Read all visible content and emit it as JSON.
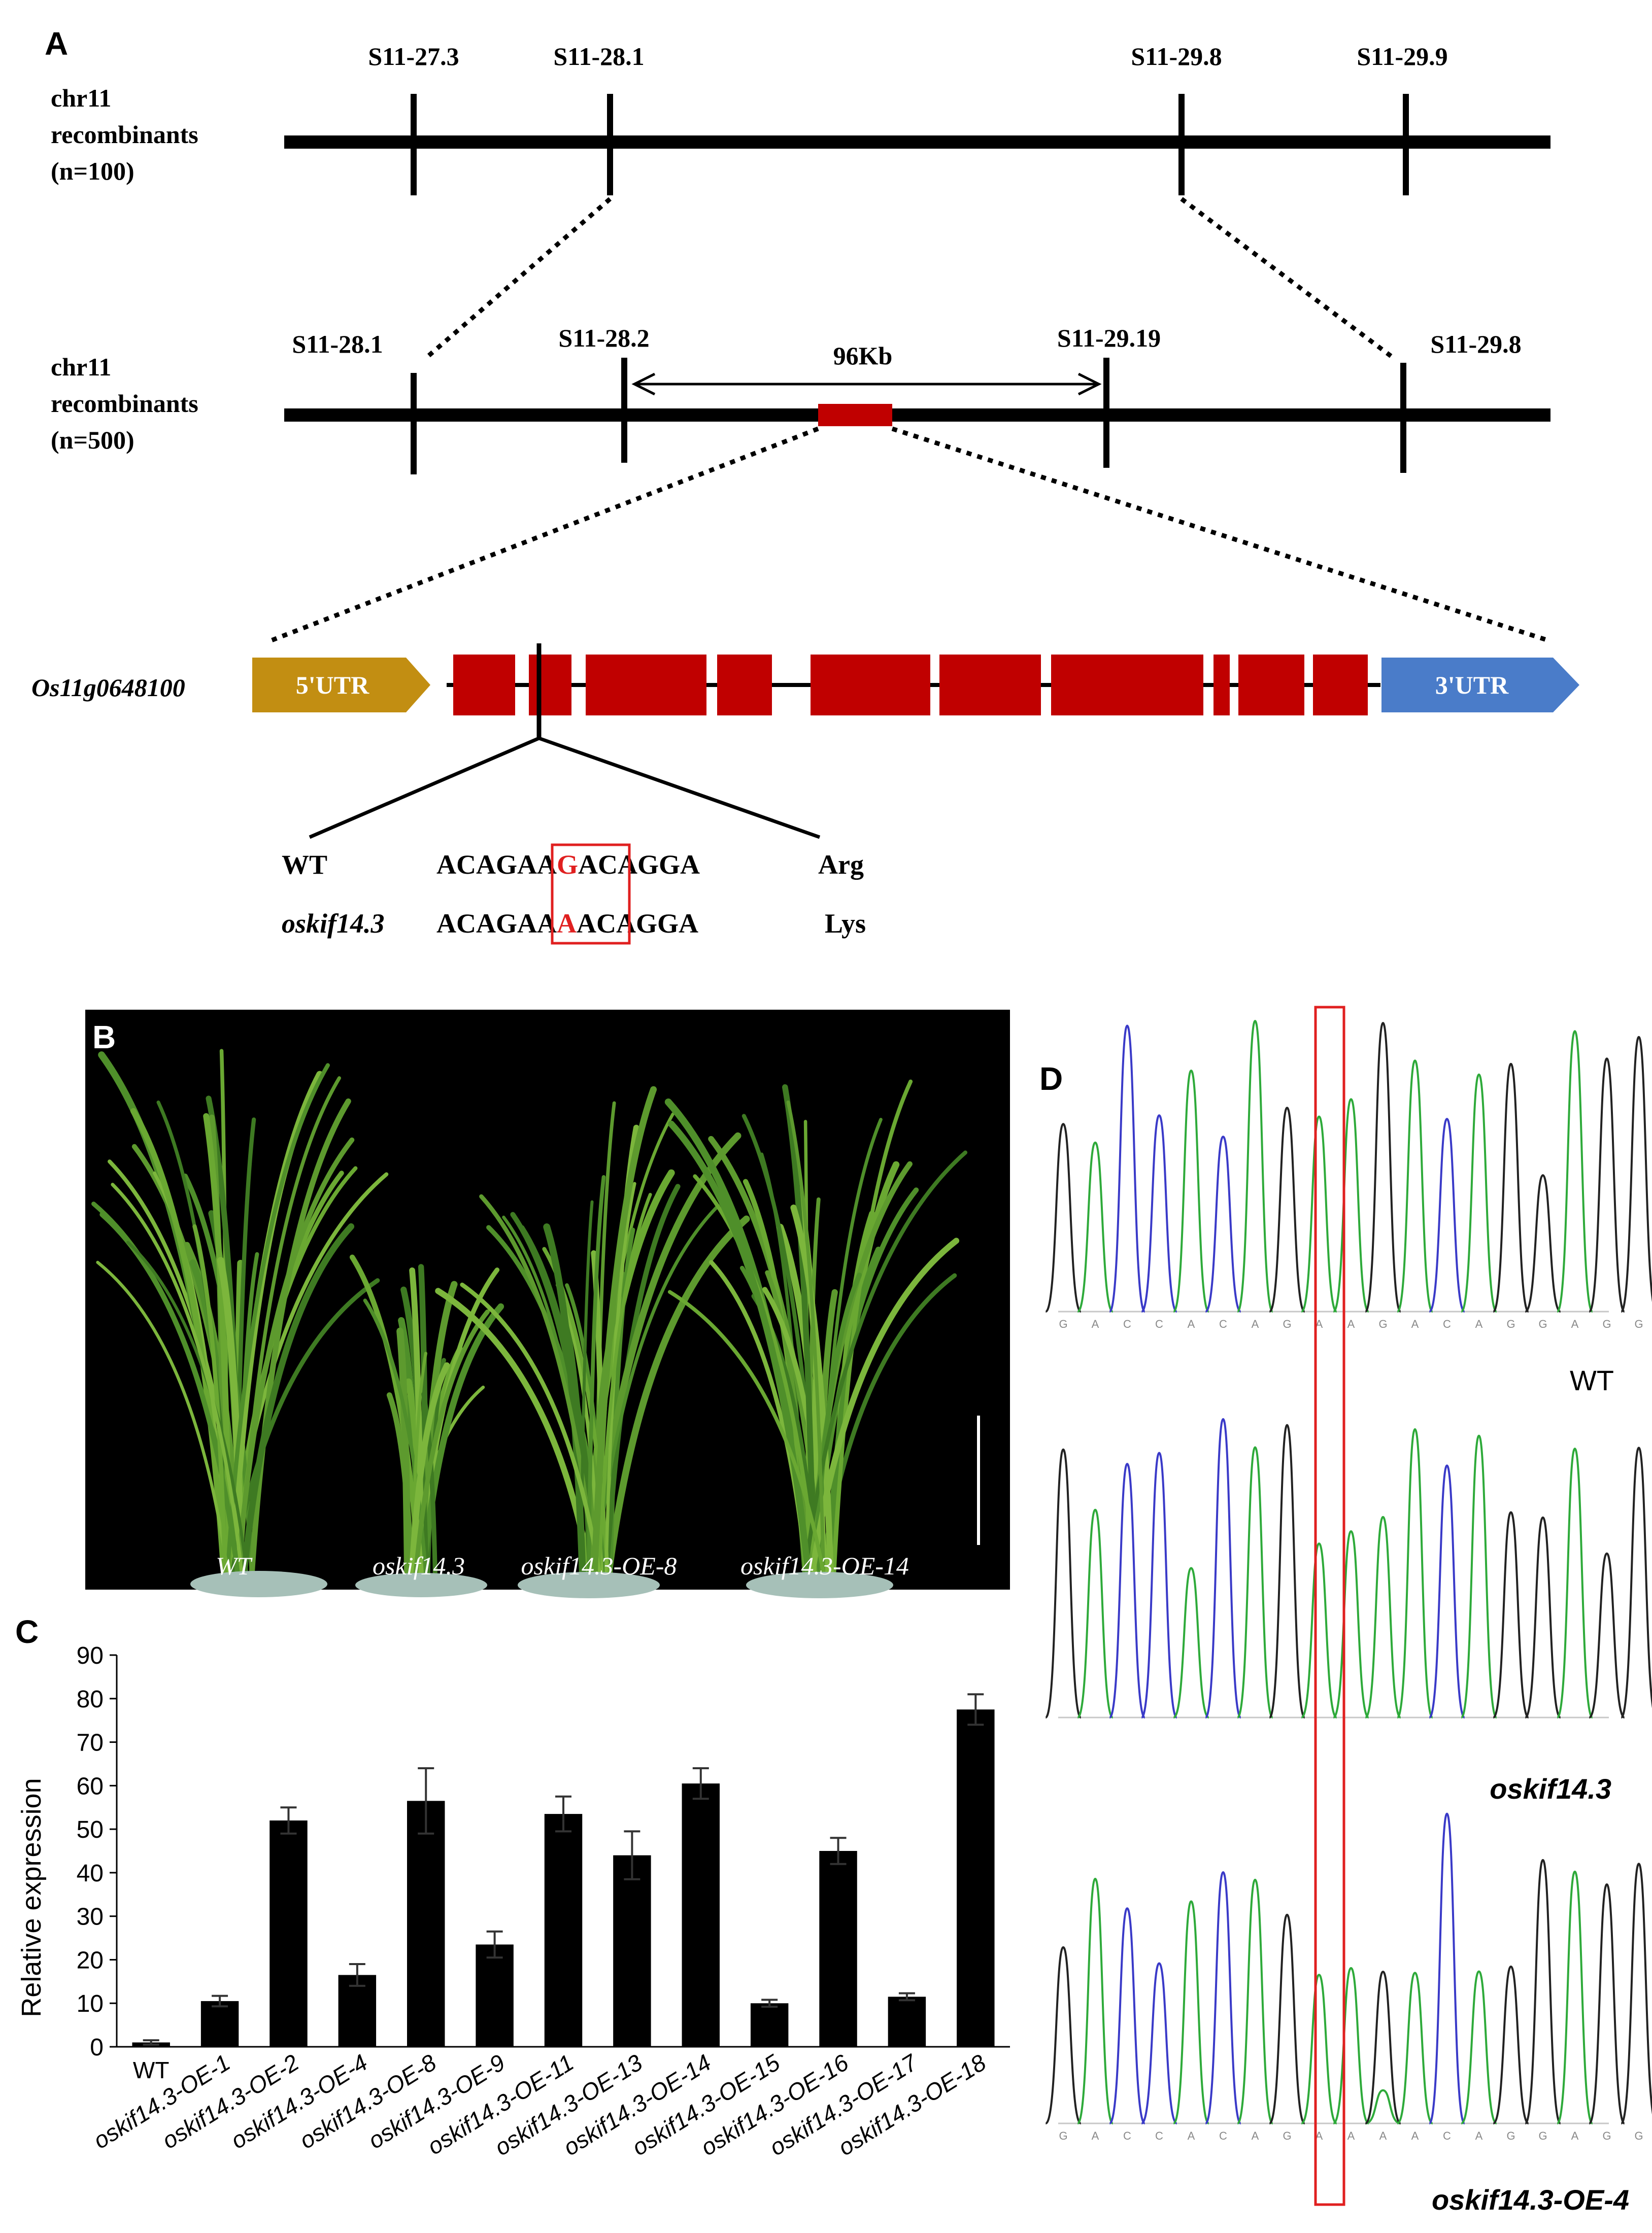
{
  "panel_labels": {
    "a": "A",
    "b": "B",
    "c": "C",
    "d": "D"
  },
  "panel_a": {
    "map1": {
      "label_lines": [
        "chr11",
        "recombinants",
        "(n=100)"
      ],
      "markers": [
        "S11-27.3",
        "S11-28.1",
        "S11-29.8",
        "S11-29.9"
      ]
    },
    "map2": {
      "label_lines": [
        "chr11",
        "recombinants",
        "(n=500)"
      ],
      "markers": [
        "S11-28.1",
        "S11-28.2",
        "S11-29.19",
        "S11-29.8"
      ],
      "interval": "96Kb"
    },
    "gene": {
      "name": "Os11g0648100",
      "utr5": "5'UTR",
      "utr3": "3'UTR"
    },
    "sequence": {
      "wt_label": "WT",
      "wt_prefix": "ACAGAA",
      "wt_base": "G",
      "wt_suffix": "ACAGGA",
      "wt_aa": "Arg",
      "mut_label": "oskif14.3",
      "mut_prefix": "ACAGAA",
      "mut_base": "A",
      "mut_suffix": "ACAGGA",
      "mut_aa": "Lys"
    }
  },
  "panel_b": {
    "plants": [
      "WT",
      "oskif14.3",
      "oskif14.3-OE-8",
      "oskif14.3-OE-14"
    ]
  },
  "chart_data": {
    "type": "bar",
    "ylabel": "Relative expression",
    "xlabel": "",
    "ylim": [
      0,
      90
    ],
    "yticks": [
      0,
      10,
      20,
      30,
      40,
      50,
      60,
      70,
      80,
      90
    ],
    "categories": [
      "WT",
      "oskif14.3-OE-1",
      "oskif14.3-OE-2",
      "oskif14.3-OE-4",
      "oskif14.3-OE-8",
      "oskif14.3-OE-9",
      "oskif14.3-OE-11",
      "oskif14.3-OE-13",
      "oskif14.3-OE-14",
      "oskif14.3-OE-15",
      "oskif14.3-OE-16",
      "oskif14.3-OE-17",
      "oskif14.3-OE-18"
    ],
    "values": [
      1,
      10.5,
      52,
      16.5,
      56.5,
      23.5,
      53.5,
      44,
      60.5,
      10,
      45,
      11.5,
      77.5
    ],
    "errors": [
      0.5,
      1.2,
      3,
      2.5,
      7.5,
      3,
      4,
      5.5,
      3.5,
      0.8,
      3,
      0.8,
      3.5
    ],
    "bar_color": "#000000"
  },
  "panel_d": {
    "traces": [
      {
        "label": "WT",
        "bases": "GACCACAGAAGACAGGAGGCA"
      },
      {
        "label": "oskif14.3",
        "bases": ""
      },
      {
        "label": "oskif14.3-OE-4",
        "bases": "GACCACAGAAAACAGGAGGCA"
      }
    ]
  },
  "colors": {
    "exon": "#C00000",
    "utr5": "#C28E12",
    "utr3": "#4A7CC9",
    "highlight": "#E02020",
    "trace_g": "#222222",
    "trace_a": "#2EAA3A",
    "trace_c": "#3A3AC8",
    "trace_t": "#D03030"
  }
}
